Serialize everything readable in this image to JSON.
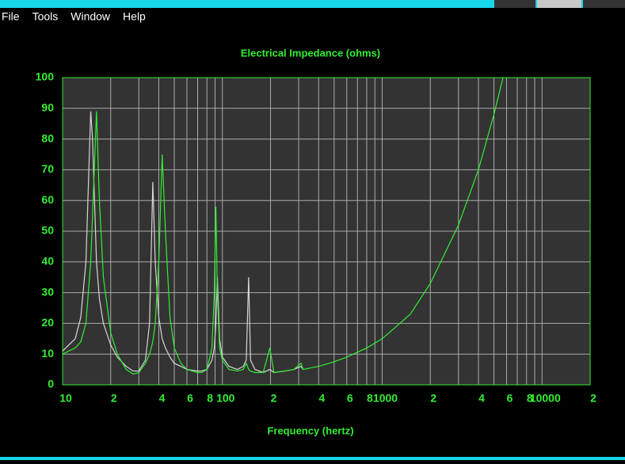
{
  "menu": [
    "File",
    "Tools",
    "Window",
    "Help"
  ],
  "chart_data": {
    "type": "line",
    "title": "Electrical Impedance (ohms)",
    "x_label": "Frequency (hertz)",
    "xscale": "log",
    "grid": true,
    "xlim": [
      10,
      20000
    ],
    "ylim": [
      0,
      100
    ],
    "yticks": [
      0,
      10,
      20,
      30,
      40,
      50,
      60,
      70,
      80,
      90,
      100
    ],
    "xticks": [
      10,
      {
        "value": 20,
        "label": "2"
      },
      {
        "value": 40,
        "label": "4"
      },
      {
        "value": 60,
        "label": "6"
      },
      {
        "value": 80,
        "label": "8"
      },
      100,
      {
        "value": 200,
        "label": "2"
      },
      {
        "value": 400,
        "label": "4"
      },
      {
        "value": 600,
        "label": "6"
      },
      {
        "value": 800,
        "label": "8"
      },
      1000,
      {
        "value": 2000,
        "label": "2"
      },
      {
        "value": 4000,
        "label": "4"
      },
      {
        "value": 6000,
        "label": "6"
      },
      {
        "value": 8000,
        "label": "8"
      },
      10000,
      {
        "value": 20000,
        "label": "2"
      }
    ],
    "xminorticks": [
      30,
      50,
      70,
      90,
      300,
      500,
      700,
      900,
      3000,
      5000,
      7000,
      9000
    ],
    "x": [
      10,
      12,
      13,
      14,
      15,
      15.4,
      16.3,
      17,
      18,
      20,
      22,
      25,
      27.6,
      30,
      33,
      35,
      36.7,
      38,
      40,
      42,
      44,
      47,
      50,
      55,
      60,
      70,
      74,
      80,
      86,
      89,
      91,
      93,
      96,
      100,
      110,
      124,
      135,
      141,
      146,
      150,
      160,
      180,
      198,
      210,
      246,
      280,
      310,
      320,
      400,
      500,
      600,
      800,
      1000,
      1500,
      2000,
      3000,
      4000,
      5000,
      5700
    ],
    "series": [
      {
        "color": "#d8d8d8",
        "values": [
          11,
          15,
          22,
          40,
          89,
          80,
          40,
          28,
          20,
          13,
          9,
          6,
          4.5,
          4.5,
          8,
          20,
          66,
          40,
          22,
          15,
          12,
          9,
          7,
          6,
          5,
          4.5,
          4.5,
          5,
          8,
          12,
          20,
          35,
          15,
          9,
          6,
          5,
          6,
          8,
          35,
          8,
          5,
          4,
          5,
          4,
          4.5,
          5,
          6,
          5,
          null,
          null,
          null,
          null,
          null,
          null,
          null,
          null,
          null,
          null,
          null
        ]
      },
      {
        "color": "#33ee33",
        "values": [
          10,
          12,
          14,
          20,
          40,
          55,
          89,
          60,
          35,
          17,
          10,
          5,
          3.5,
          4,
          7,
          10,
          14,
          20,
          40,
          75,
          50,
          22,
          12,
          7,
          5,
          4,
          4,
          5,
          12,
          30,
          58,
          30,
          12,
          8,
          5,
          4.5,
          5,
          7,
          5,
          4.5,
          4,
          4,
          12,
          4,
          4.5,
          5,
          7,
          5,
          6,
          7.5,
          9,
          12,
          15,
          23,
          33,
          52,
          70,
          88,
          100
        ]
      }
    ]
  }
}
